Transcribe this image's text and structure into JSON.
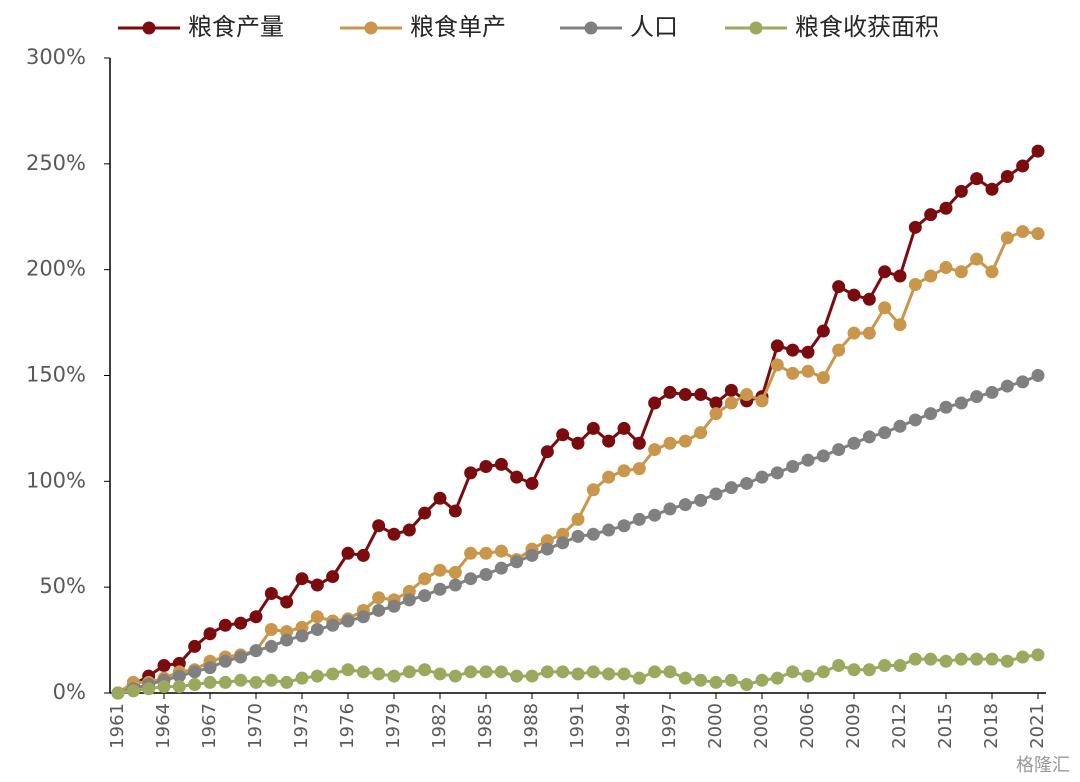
{
  "chart_data": {
    "type": "line",
    "x": [
      1961,
      1962,
      1963,
      1964,
      1965,
      1966,
      1967,
      1968,
      1969,
      1970,
      1971,
      1972,
      1973,
      1974,
      1975,
      1976,
      1977,
      1978,
      1979,
      1980,
      1981,
      1982,
      1983,
      1984,
      1985,
      1986,
      1987,
      1988,
      1989,
      1990,
      1991,
      1992,
      1993,
      1994,
      1995,
      1996,
      1997,
      1998,
      1999,
      2000,
      2001,
      2002,
      2003,
      2004,
      2005,
      2006,
      2007,
      2008,
      2009,
      2010,
      2011,
      2012,
      2013,
      2014,
      2015,
      2016,
      2017,
      2018,
      2019,
      2020,
      2021
    ],
    "series": [
      {
        "name": "粮食产量",
        "color": "#7a0b0e",
        "values": [
          0,
          4,
          8,
          13,
          14,
          22,
          28,
          32,
          33,
          36,
          47,
          43,
          54,
          51,
          55,
          66,
          65,
          79,
          75,
          77,
          85,
          92,
          86,
          104,
          107,
          108,
          102,
          99,
          114,
          122,
          118,
          125,
          119,
          125,
          118,
          137,
          142,
          141,
          141,
          137,
          143,
          138,
          140,
          164,
          162,
          161,
          171,
          192,
          188,
          186,
          199,
          197,
          220,
          226,
          229,
          237,
          243,
          238,
          244,
          249,
          256
        ]
      },
      {
        "name": "粮食单产",
        "color": "#c9964b",
        "values": [
          0,
          5,
          5,
          7,
          10,
          11,
          15,
          17,
          18,
          20,
          30,
          29,
          31,
          36,
          34,
          35,
          39,
          45,
          44,
          48,
          54,
          58,
          57,
          66,
          66,
          67,
          63,
          68,
          72,
          75,
          82,
          96,
          102,
          105,
          106,
          115,
          118,
          119,
          123,
          132,
          137,
          141,
          138,
          155,
          151,
          152,
          149,
          162,
          170,
          170,
          182,
          174,
          193,
          197,
          201,
          199,
          205,
          199,
          215,
          218,
          217
        ]
      },
      {
        "name": "人口",
        "color": "#808080",
        "values": [
          0,
          2,
          4,
          6,
          8,
          10,
          12,
          15,
          17,
          20,
          22,
          25,
          27,
          30,
          32,
          34,
          36,
          39,
          41,
          44,
          46,
          49,
          51,
          54,
          56,
          59,
          62,
          65,
          68,
          71,
          74,
          75,
          77,
          79,
          82,
          84,
          87,
          89,
          91,
          94,
          97,
          99,
          102,
          104,
          107,
          110,
          112,
          115,
          118,
          121,
          123,
          126,
          129,
          132,
          135,
          137,
          140,
          142,
          145,
          147,
          150
        ]
      },
      {
        "name": "粮食收获面积",
        "color": "#9aa95e",
        "values": [
          0,
          1,
          2,
          3,
          3,
          4,
          5,
          5,
          6,
          5,
          6,
          5,
          7,
          8,
          9,
          11,
          10,
          9,
          8,
          10,
          11,
          9,
          8,
          10,
          10,
          10,
          8,
          8,
          10,
          10,
          9,
          10,
          9,
          9,
          7,
          10,
          10,
          7,
          6,
          5,
          6,
          4,
          6,
          7,
          10,
          8,
          10,
          13,
          11,
          11,
          13,
          13,
          16,
          16,
          15,
          16,
          16,
          16,
          15,
          17,
          18
        ]
      }
    ],
    "xlim": [
      1961,
      2021
    ],
    "xticks": [
      1961,
      1964,
      1967,
      1970,
      1973,
      1976,
      1979,
      1982,
      1985,
      1988,
      1991,
      1994,
      1997,
      2000,
      2003,
      2006,
      2009,
      2012,
      2015,
      2018,
      2021
    ],
    "ylim": [
      0,
      300
    ],
    "yticks": [
      {
        "value": 0,
        "label": "0%"
      },
      {
        "value": 50,
        "label": "50%"
      },
      {
        "value": 100,
        "label": "100%"
      },
      {
        "value": 150,
        "label": "150%"
      },
      {
        "value": 200,
        "label": "200%"
      },
      {
        "value": 250,
        "label": "250%"
      },
      {
        "value": 300,
        "label": "300%"
      }
    ],
    "legend": "top",
    "watermark": "格隆汇"
  }
}
